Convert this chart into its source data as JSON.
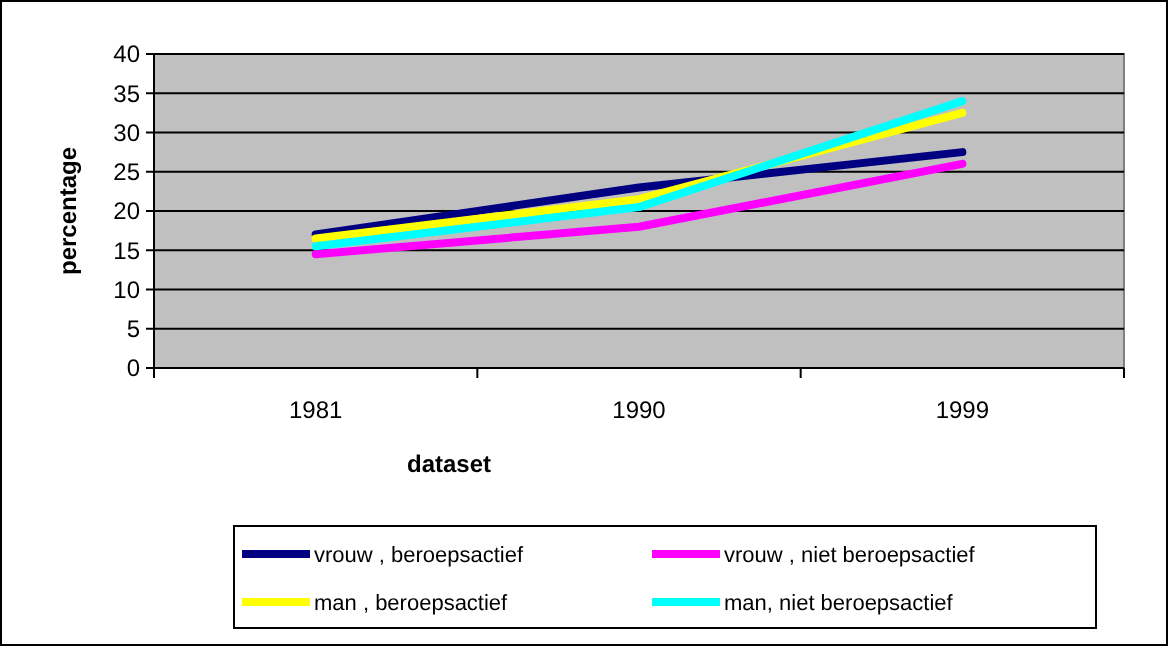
{
  "chart_data": {
    "type": "line",
    "xlabel": "dataset",
    "ylabel": "percentage",
    "categories": [
      "1981",
      "1990",
      "1999"
    ],
    "ylim": [
      0,
      40
    ],
    "yticks": [
      0,
      5,
      10,
      15,
      20,
      25,
      30,
      35,
      40
    ],
    "grid": "y",
    "legend": "bottom",
    "marker": "none",
    "line_style": "solid",
    "series": [
      {
        "name": "vrouw , beroepsactief",
        "color": "#000080",
        "values": [
          17,
          23,
          27.5
        ]
      },
      {
        "name": "vrouw , niet beroepsactief",
        "color": "#ff00ff",
        "values": [
          14.5,
          18,
          26
        ]
      },
      {
        "name": "man , beroepsactief",
        "color": "#ffff00",
        "values": [
          16.5,
          21.5,
          32.5
        ]
      },
      {
        "name": "man, niet beroepsactief",
        "color": "#00ffff",
        "values": [
          15.5,
          20.5,
          34
        ]
      }
    ]
  }
}
